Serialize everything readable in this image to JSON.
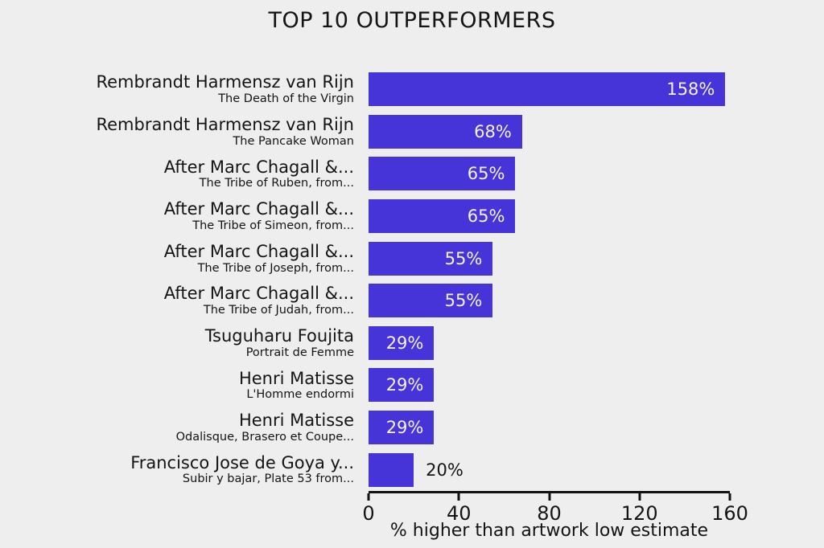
{
  "title": "TOP 10 OUTPERFORMERS",
  "chart_data": {
    "type": "bar",
    "orientation": "horizontal",
    "title": "TOP 10 OUTPERFORMERS",
    "xlabel": "% higher than artwork low estimate",
    "xlim": [
      0,
      160
    ],
    "xticks": [
      0,
      40,
      80,
      120,
      160
    ],
    "grid": false,
    "legend": "none",
    "bar_color": "#4634D9",
    "background_color": "#EFEEEE",
    "categories": [
      "Rembrandt Harmensz van Rijn",
      "Rembrandt Harmensz van Rijn",
      "After Marc Chagall &...",
      "After Marc Chagall &...",
      "After Marc Chagall &...",
      "After Marc Chagall &...",
      "Tsuguharu Foujita",
      "Henri Matisse",
      "Henri Matisse",
      "Francisco Jose de Goya y..."
    ],
    "subcategories": [
      "The Death of the Virgin",
      "The Pancake Woman",
      "The Tribe of Ruben, from...",
      "The Tribe of Simeon, from...",
      "The Tribe of Joseph, from...",
      "The Tribe of Judah, from...",
      "Portrait de Femme",
      "L'Homme endormi",
      "Odalisque, Brasero et Coupe...",
      "Subir y bajar, Plate 53 from..."
    ],
    "values": [
      158,
      68,
      65,
      65,
      55,
      55,
      29,
      29,
      29,
      20
    ],
    "bar_labels": [
      "158%",
      "68%",
      "65%",
      "65%",
      "55%",
      "55%",
      "29%",
      "29%",
      "29%",
      "20%"
    ],
    "label_positions": [
      "inside",
      "inside",
      "inside",
      "inside",
      "inside",
      "inside",
      "inside",
      "inside",
      "inside",
      "outside"
    ]
  },
  "colors": {
    "bar": "#4634D9",
    "background": "#EFEEEE",
    "text": "#141414",
    "bar_label_inside": "#F4F3FB"
  }
}
